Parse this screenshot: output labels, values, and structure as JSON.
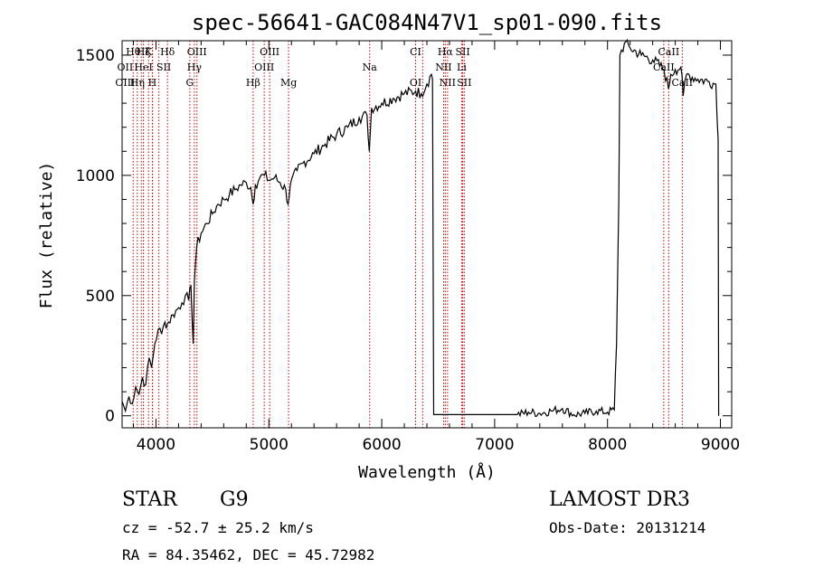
{
  "chart_data": {
    "type": "line",
    "title": "spec-56641-GAC084N47V1_sp01-090.fits",
    "xlabel": "Wavelength (Å)",
    "ylabel": "Flux (relative)",
    "xlim": [
      3700,
      9100
    ],
    "ylim": [
      -50,
      1560
    ],
    "xticks": [
      4000,
      5000,
      6000,
      7000,
      8000,
      9000
    ],
    "xtick_labels": [
      "4000",
      "5000",
      "6000",
      "7000",
      "8000",
      "9000"
    ],
    "yticks": [
      0,
      500,
      1000,
      1500
    ],
    "ytick_labels": [
      "0",
      "500",
      "1000",
      "1500"
    ],
    "grid": false,
    "series": [
      {
        "name": "flux",
        "color": "#000000",
        "points": [
          [
            3700,
            60
          ],
          [
            3730,
            20
          ],
          [
            3760,
            80
          ],
          [
            3790,
            50
          ],
          [
            3820,
            120
          ],
          [
            3850,
            90
          ],
          [
            3880,
            160
          ],
          [
            3910,
            130
          ],
          [
            3940,
            240
          ],
          [
            3960,
            200
          ],
          [
            3990,
            300
          ],
          [
            4020,
            360
          ],
          [
            4050,
            340
          ],
          [
            4080,
            390
          ],
          [
            4100,
            380
          ],
          [
            4150,
            420
          ],
          [
            4200,
            450
          ],
          [
            4230,
            470
          ],
          [
            4260,
            500
          ],
          [
            4290,
            480
          ],
          [
            4310,
            540
          ],
          [
            4330,
            300
          ],
          [
            4340,
            560
          ],
          [
            4360,
            700
          ],
          [
            4400,
            760
          ],
          [
            4450,
            800
          ],
          [
            4500,
            840
          ],
          [
            4550,
            880
          ],
          [
            4600,
            900
          ],
          [
            4650,
            920
          ],
          [
            4700,
            940
          ],
          [
            4750,
            960
          ],
          [
            4800,
            970
          ],
          [
            4840,
            950
          ],
          [
            4860,
            880
          ],
          [
            4880,
            960
          ],
          [
            4920,
            990
          ],
          [
            4960,
            1000
          ],
          [
            5000,
            980
          ],
          [
            5050,
            990
          ],
          [
            5100,
            970
          ],
          [
            5150,
            940
          ],
          [
            5170,
            880
          ],
          [
            5190,
            960
          ],
          [
            5250,
            1020
          ],
          [
            5300,
            1050
          ],
          [
            5400,
            1090
          ],
          [
            5500,
            1130
          ],
          [
            5600,
            1170
          ],
          [
            5700,
            1200
          ],
          [
            5800,
            1240
          ],
          [
            5870,
            1250
          ],
          [
            5890,
            1100
          ],
          [
            5910,
            1280
          ],
          [
            6000,
            1300
          ],
          [
            6100,
            1320
          ],
          [
            6200,
            1340
          ],
          [
            6300,
            1350
          ],
          [
            6350,
            1340
          ],
          [
            6400,
            1380
          ],
          [
            6440,
            1420
          ],
          [
            6450,
            1400
          ],
          [
            6460,
            5
          ],
          [
            6600,
            5
          ],
          [
            6800,
            5
          ],
          [
            7000,
            5
          ],
          [
            7200,
            5
          ],
          [
            7300,
            15
          ],
          [
            7400,
            10
          ],
          [
            7500,
            20
          ],
          [
            7600,
            30
          ],
          [
            7700,
            5
          ],
          [
            7800,
            10
          ],
          [
            7900,
            20
          ],
          [
            8000,
            15
          ],
          [
            8060,
            25
          ],
          [
            8080,
            300
          ],
          [
            8100,
            900
          ],
          [
            8110,
            1500
          ],
          [
            8150,
            1550
          ],
          [
            8200,
            1530
          ],
          [
            8300,
            1500
          ],
          [
            8400,
            1480
          ],
          [
            8500,
            1440
          ],
          [
            8540,
            1360
          ],
          [
            8560,
            1420
          ],
          [
            8600,
            1440
          ],
          [
            8650,
            1450
          ],
          [
            8670,
            1330
          ],
          [
            8700,
            1420
          ],
          [
            8800,
            1400
          ],
          [
            8900,
            1390
          ],
          [
            8960,
            1380
          ],
          [
            8980,
            1150
          ],
          [
            8985,
            0
          ]
        ]
      }
    ],
    "line_marks": {
      "color": "#cc0000",
      "wavelengths": [
        3798,
        3835,
        3870,
        3889,
        3934,
        3968,
        3970,
        4026,
        4102,
        4300,
        4340,
        4363,
        4861,
        4959,
        5007,
        5175,
        5893,
        6300,
        6363,
        6548,
        6563,
        6583,
        6708,
        6717,
        6731,
        8498,
        8542,
        8662
      ]
    },
    "annotations": [
      {
        "text": "Hθ",
        "row": 1,
        "wl": 3798
      },
      {
        "text": "Hζ",
        "row": 1,
        "wl": 3889
      },
      {
        "text": "K",
        "row": 1,
        "wl": 3934
      },
      {
        "text": "Hδ",
        "row": 1,
        "wl": 4102
      },
      {
        "text": "OIII",
        "row": 1,
        "wl": 4363
      },
      {
        "text": "OIII",
        "row": 1,
        "wl": 5007
      },
      {
        "text": "CI",
        "row": 1,
        "wl": 6300
      },
      {
        "text": "Hα",
        "row": 1,
        "wl": 6563
      },
      {
        "text": "SII",
        "row": 1,
        "wl": 6717
      },
      {
        "text": "CaII",
        "row": 1,
        "wl": 8542
      },
      {
        "text": "OII",
        "row": 2,
        "wl": 3727
      },
      {
        "text": "HeI",
        "row": 2,
        "wl": 3889
      },
      {
        "text": "SII",
        "row": 2,
        "wl": 4069
      },
      {
        "text": "Hγ",
        "row": 2,
        "wl": 4340
      },
      {
        "text": "OIII",
        "row": 2,
        "wl": 4959
      },
      {
        "text": "Na",
        "row": 2,
        "wl": 5893
      },
      {
        "text": "NII",
        "row": 2,
        "wl": 6548
      },
      {
        "text": "Li",
        "row": 2,
        "wl": 6708
      },
      {
        "text": "CaII",
        "row": 2,
        "wl": 8498
      },
      {
        "text": "OIII",
        "row": 3,
        "wl": 3727
      },
      {
        "text": "Hη",
        "row": 3,
        "wl": 3835
      },
      {
        "text": "H",
        "row": 3,
        "wl": 3968
      },
      {
        "text": "G",
        "row": 3,
        "wl": 4300
      },
      {
        "text": "Hβ",
        "row": 3,
        "wl": 4861
      },
      {
        "text": "Mg",
        "row": 3,
        "wl": 5175
      },
      {
        "text": "OI",
        "row": 3,
        "wl": 6300
      },
      {
        "text": "NII",
        "row": 3,
        "wl": 6583
      },
      {
        "text": "SII",
        "row": 3,
        "wl": 6731
      },
      {
        "text": "CaII",
        "row": 3,
        "wl": 8662
      }
    ]
  },
  "info": {
    "class_label": "STAR",
    "subclass": "G9",
    "survey": "LAMOST DR3",
    "cz_text": "cz = -52.7 ± 25.2 km/s",
    "obs_date_text": "Obs-Date: 20131214",
    "coords_text": "RA =  84.35462, DEC =  45.72982"
  }
}
